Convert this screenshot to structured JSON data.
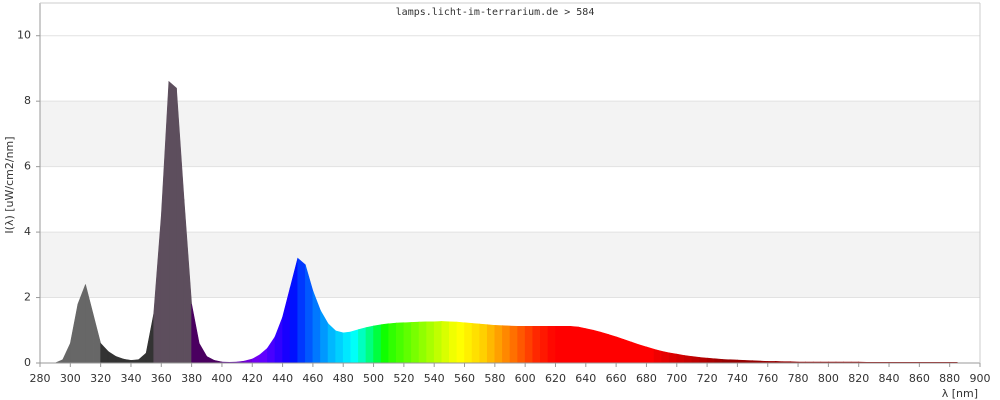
{
  "chart_data": {
    "type": "area",
    "title": "lamps.licht-im-terrarium.de > 584",
    "x_label": "λ [nm]",
    "y_label": "I(λ)  [uW/cm2/nm]",
    "x": [
      290,
      295,
      300,
      305,
      310,
      315,
      320,
      325,
      330,
      335,
      340,
      345,
      350,
      355,
      360,
      365,
      370,
      375,
      380,
      385,
      390,
      395,
      400,
      405,
      410,
      415,
      420,
      425,
      430,
      435,
      440,
      445,
      450,
      455,
      460,
      465,
      470,
      475,
      480,
      485,
      490,
      495,
      500,
      505,
      510,
      515,
      520,
      525,
      530,
      535,
      540,
      545,
      550,
      555,
      560,
      565,
      570,
      575,
      580,
      585,
      590,
      595,
      600,
      605,
      610,
      615,
      620,
      625,
      630,
      635,
      640,
      645,
      650,
      655,
      660,
      665,
      670,
      675,
      680,
      685,
      690,
      695,
      700,
      705,
      710,
      715,
      720,
      725,
      730,
      735,
      740,
      745,
      750,
      755,
      760,
      765,
      770,
      775,
      780,
      785,
      790,
      795,
      800,
      805,
      810,
      815,
      820,
      825,
      830,
      835,
      840,
      845,
      850,
      855,
      860,
      865,
      870,
      875,
      880,
      885
    ],
    "values": [
      0,
      0.1,
      0.6,
      1.8,
      2.4,
      1.5,
      0.6,
      0.35,
      0.2,
      0.12,
      0.08,
      0.1,
      0.3,
      1.5,
      4.5,
      8.6,
      8.4,
      5,
      1.8,
      0.6,
      0.2,
      0.08,
      0.03,
      0.02,
      0.03,
      0.06,
      0.12,
      0.25,
      0.45,
      0.8,
      1.4,
      2.3,
      3.2,
      3,
      2.2,
      1.6,
      1.2,
      0.98,
      0.92,
      0.95,
      1.02,
      1.08,
      1.13,
      1.17,
      1.2,
      1.22,
      1.23,
      1.24,
      1.25,
      1.26,
      1.26,
      1.27,
      1.26,
      1.25,
      1.23,
      1.21,
      1.19,
      1.17,
      1.15,
      1.14,
      1.13,
      1.12,
      1.12,
      1.12,
      1.12,
      1.12,
      1.12,
      1.12,
      1.12,
      1.1,
      1.05,
      1,
      0.94,
      0.87,
      0.8,
      0.72,
      0.64,
      0.56,
      0.49,
      0.42,
      0.36,
      0.31,
      0.27,
      0.23,
      0.2,
      0.17,
      0.15,
      0.13,
      0.11,
      0.1,
      0.09,
      0.08,
      0.07,
      0.06,
      0.05,
      0.05,
      0.04,
      0.04,
      0.03,
      0.03,
      0.03,
      0.03,
      0.03,
      0.03,
      0.03,
      0.03,
      0.03,
      0.02,
      0.02,
      0.02,
      0.02,
      0.02,
      0.02,
      0.02,
      0.02,
      0.02,
      0.02,
      0.02,
      0.02,
      0.02
    ],
    "colors": [
      "#676767",
      "#676767",
      "#676767",
      "#676767",
      "#676767",
      "#676767",
      "#333333",
      "#333333",
      "#333333",
      "#333333",
      "#333333",
      "#333333",
      "#333333",
      "#5d4e5d",
      "#5d4e5d",
      "#5d4e5d",
      "#5d4e5d",
      "#5d4e5d",
      "#4a0060",
      "#4a0060",
      "#4a0060",
      "#4a0060",
      "#5a0090",
      "#6000a8",
      "#6800c0",
      "#7000d8",
      "#7000f0",
      "#6000ff",
      "#4800ff",
      "#3000ff",
      "#1800ff",
      "#0010ff",
      "#0038ff",
      "#0058ff",
      "#0078ff",
      "#0098ff",
      "#00b8ff",
      "#00d0ff",
      "#00e8ff",
      "#00fff8",
      "#00ffc0",
      "#00ff80",
      "#00ff40",
      "#10ff00",
      "#30ff00",
      "#48ff00",
      "#60ff00",
      "#78ff00",
      "#90ff00",
      "#a8ff00",
      "#c0ff00",
      "#d8ff00",
      "#f0ff00",
      "#ffff00",
      "#fff000",
      "#ffe000",
      "#ffd000",
      "#ffb800",
      "#ffa000",
      "#ff8800",
      "#ff7000",
      "#ff5800",
      "#ff4000",
      "#ff2800",
      "#ff1800",
      "#ff0800",
      "#ff0000",
      "#ff0000",
      "#ff0000",
      "#ff0000",
      "#ff0000",
      "#ff0000",
      "#ff0000",
      "#ff0000",
      "#ff0000",
      "#ff0000",
      "#ff0000",
      "#ff0000",
      "#ff0000",
      "#f00000",
      "#e60000",
      "#dc0000",
      "#d20000",
      "#c80000",
      "#be0000",
      "#b40000",
      "#aa0000",
      "#a00000",
      "#960000",
      "#960000",
      "#960000",
      "#960000",
      "#960000",
      "#960000",
      "#960000",
      "#960000",
      "#960000",
      "#960000",
      "#960000",
      "#960000",
      "#960000",
      "#960000",
      "#960000",
      "#960000",
      "#960000",
      "#960000",
      "#960000",
      "#960000",
      "#960000",
      "#960000",
      "#960000",
      "#960000",
      "#960000",
      "#960000",
      "#960000",
      "#960000",
      "#960000",
      "#960000",
      "#960000",
      "#960000"
    ],
    "xlim": [
      280,
      900
    ],
    "xticks": [
      280,
      300,
      320,
      340,
      360,
      380,
      400,
      420,
      440,
      460,
      480,
      500,
      520,
      540,
      560,
      580,
      600,
      620,
      640,
      660,
      680,
      700,
      720,
      740,
      760,
      780,
      800,
      820,
      840,
      860,
      880,
      900
    ],
    "ylim": [
      0,
      11
    ],
    "yticks": [
      0,
      2,
      4,
      6,
      8,
      10
    ],
    "grid": true
  }
}
